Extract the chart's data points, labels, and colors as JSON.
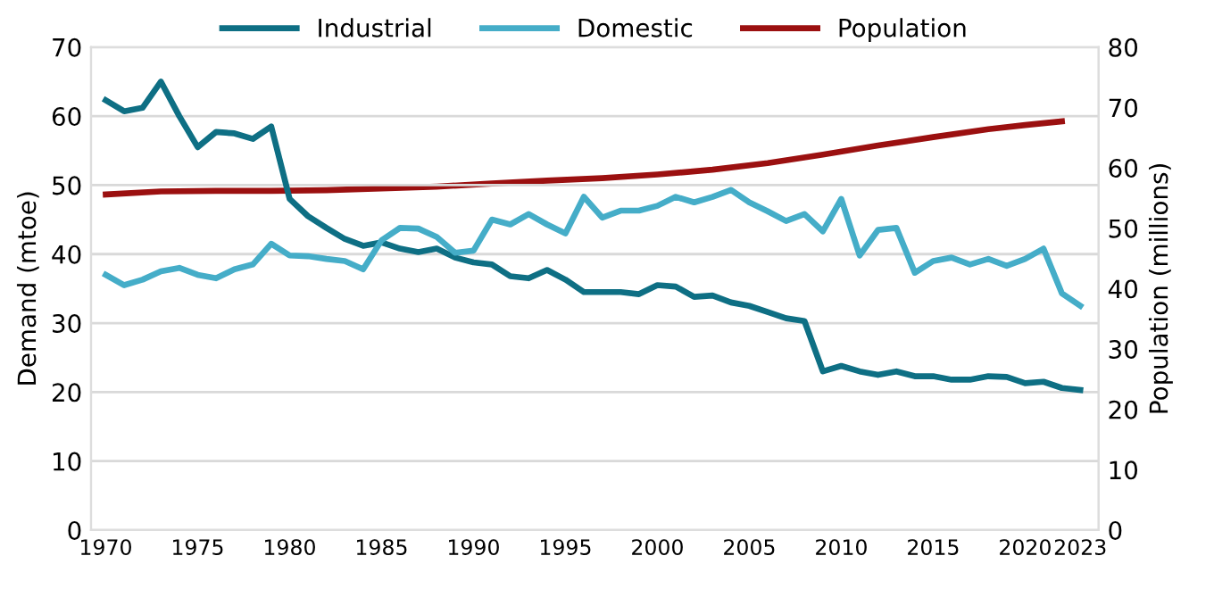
{
  "chart_data": {
    "type": "line",
    "ylabel": "Demand (mtoe)",
    "y2label": "Population (millions)",
    "xlim": [
      1969.2,
      2024
    ],
    "xticks": [
      1970,
      1975,
      1980,
      1985,
      1990,
      1995,
      2000,
      2005,
      2010,
      2015,
      2020,
      2023
    ],
    "ylim": [
      0,
      70
    ],
    "yticks": [
      0,
      10,
      20,
      30,
      40,
      50,
      60,
      70
    ],
    "y2lim": [
      0,
      80
    ],
    "y2ticks": [
      0,
      10,
      20,
      30,
      40,
      50,
      60,
      70,
      80
    ],
    "grid": "y",
    "legend": "top",
    "line_style": "solid",
    "series": [
      {
        "name": "Industrial",
        "color": "#0e6f84",
        "x": [
          1970,
          1971,
          1972,
          1973,
          1974,
          1975,
          1976,
          1977,
          1978,
          1979,
          1980,
          1981,
          1982,
          1983,
          1984,
          1985,
          1986,
          1987,
          1988,
          1989,
          1990,
          1991,
          1992,
          1993,
          1994,
          1995,
          1996,
          1997,
          1998,
          1999,
          2000,
          2001,
          2002,
          2003,
          2004,
          2005,
          2006,
          2007,
          2008,
          2009,
          2010,
          2011,
          2012,
          2013,
          2014,
          2015,
          2016,
          2017,
          2018,
          2019,
          2020,
          2021,
          2022,
          2023
        ],
        "values": [
          62.3,
          60.7,
          61.2,
          65,
          60,
          55.5,
          57.7,
          57.5,
          56.7,
          58.5,
          48,
          45.5,
          43.8,
          42.2,
          41.2,
          41.7,
          40.8,
          40.3,
          40.8,
          39.5,
          38.8,
          38.5,
          36.8,
          36.5,
          37.7,
          36.3,
          34.5,
          34.5,
          34.5,
          34.2,
          35.5,
          35.3,
          33.8,
          34,
          33,
          32.5,
          31.6,
          30.7,
          30.3,
          23,
          23.8,
          23,
          22.5,
          23,
          22.3,
          22.3,
          21.8,
          21.8,
          22.3,
          22.2,
          21.3,
          21.5,
          20.6,
          20.3
        ]
      },
      {
        "name": "Domestic",
        "color": "#45adc8",
        "x": [
          1970,
          1971,
          1972,
          1973,
          1974,
          1975,
          1976,
          1977,
          1978,
          1979,
          1980,
          1981,
          1982,
          1983,
          1984,
          1985,
          1986,
          1987,
          1988,
          1989,
          1990,
          1991,
          1992,
          1993,
          1994,
          1995,
          1996,
          1997,
          1998,
          1999,
          2000,
          2001,
          2002,
          2003,
          2004,
          2005,
          2006,
          2007,
          2008,
          2009,
          2010,
          2011,
          2012,
          2013,
          2014,
          2015,
          2016,
          2017,
          2018,
          2019,
          2020,
          2021,
          2022,
          2023
        ],
        "values": [
          37,
          35.5,
          36.3,
          37.5,
          38,
          37,
          36.5,
          37.8,
          38.5,
          41.5,
          39.8,
          39.7,
          39.3,
          39,
          37.8,
          42,
          43.8,
          43.7,
          42.5,
          40.2,
          40.5,
          45,
          44.3,
          45.8,
          44.3,
          43,
          48.3,
          45.3,
          46.3,
          46.3,
          47,
          48.3,
          47.5,
          48.3,
          49.3,
          47.5,
          46.2,
          44.8,
          45.8,
          43.3,
          48,
          39.8,
          43.5,
          43.8,
          37.3,
          39,
          39.5,
          38.5,
          39.3,
          38.3,
          39.3,
          40.8,
          34.3,
          32.5
        ]
      },
      {
        "name": "Population",
        "color": "#9b1010",
        "axis": "y2",
        "x": [
          1970,
          1973,
          1976,
          1979,
          1982,
          1985,
          1988,
          1991,
          1994,
          1997,
          2000,
          2003,
          2006,
          2009,
          2012,
          2015,
          2018,
          2020,
          2022
        ],
        "values": [
          55.6,
          56.1,
          56.2,
          56.2,
          56.3,
          56.6,
          56.9,
          57.4,
          57.9,
          58.3,
          58.9,
          59.7,
          60.8,
          62.2,
          63.7,
          65.1,
          66.4,
          67.1,
          67.7
        ]
      }
    ]
  }
}
